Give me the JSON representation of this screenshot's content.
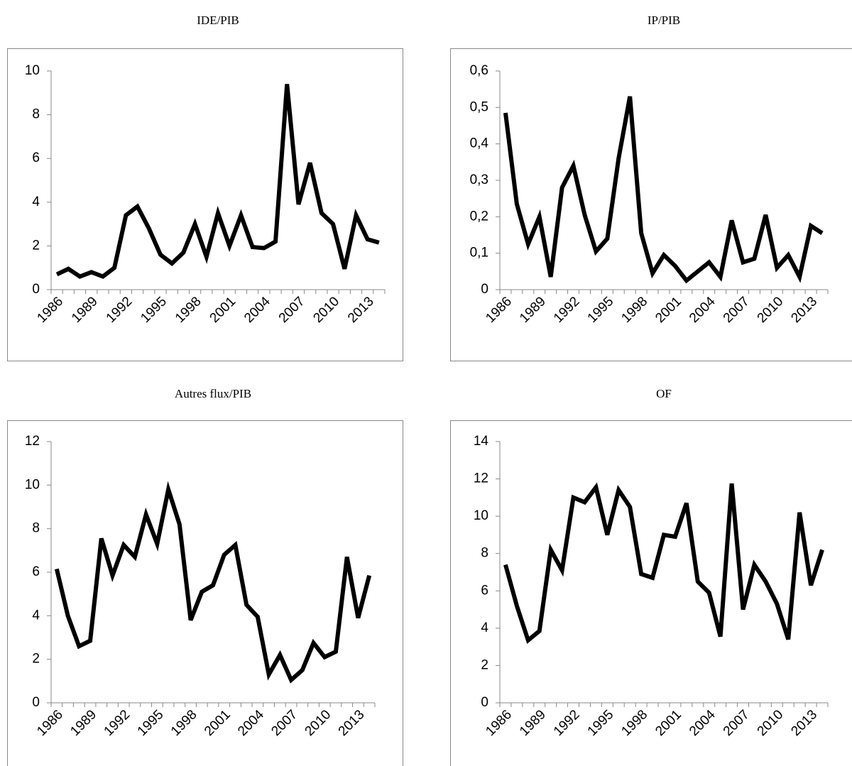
{
  "chart_data": [
    {
      "type": "line",
      "title": "IDE/PIB",
      "categories": [
        "1986",
        null,
        null,
        "1989",
        null,
        null,
        "1992",
        null,
        null,
        "1995",
        null,
        null,
        "1998",
        null,
        null,
        "2001",
        null,
        null,
        "2004",
        null,
        null,
        "2007",
        null,
        null,
        "2010",
        null,
        null,
        "2013",
        null
      ],
      "values": [
        0.7,
        0.95,
        0.6,
        0.8,
        0.6,
        1.0,
        3.4,
        3.8,
        2.8,
        1.6,
        1.2,
        1.7,
        3.0,
        1.5,
        3.5,
        2.0,
        3.4,
        1.95,
        1.9,
        2.2,
        9.4,
        3.9,
        5.8,
        3.5,
        3.0,
        0.95,
        3.4,
        2.3,
        2.15
      ],
      "color": "#000000",
      "ylim": [
        0,
        10
      ],
      "yticks": [
        0,
        2,
        4,
        6,
        8,
        10
      ]
    },
    {
      "type": "line",
      "title": "IP/PIB",
      "categories": [
        "1986",
        null,
        null,
        "1989",
        null,
        null,
        "1992",
        null,
        null,
        "1995",
        null,
        null,
        "1998",
        null,
        null,
        "2001",
        null,
        null,
        "2004",
        null,
        null,
        "2007",
        null,
        null,
        "2010",
        null,
        null,
        "2013",
        null
      ],
      "values": [
        0.485,
        0.235,
        0.125,
        0.2,
        0.035,
        0.28,
        0.34,
        0.205,
        0.105,
        0.14,
        0.36,
        0.53,
        0.155,
        0.045,
        0.095,
        0.065,
        0.025,
        0.05,
        0.075,
        0.035,
        0.19,
        0.075,
        0.085,
        0.205,
        0.06,
        0.095,
        0.035,
        0.175,
        0.155
      ],
      "color": "#000000",
      "ylim": [
        0,
        0.6
      ],
      "yticks": [
        0,
        {
          "value": 0.1,
          "label": "0,1"
        },
        {
          "value": 0.2,
          "label": "0,2"
        },
        {
          "value": 0.3,
          "label": "0,3"
        },
        {
          "value": 0.4,
          "label": "0,4"
        },
        {
          "value": 0.5,
          "label": "0,5"
        },
        {
          "value": 0.6,
          "label": "0,6"
        }
      ]
    },
    {
      "type": "line",
      "title": "Autres flux/PIB",
      "categories": [
        "1986",
        null,
        null,
        "1989",
        null,
        null,
        "1992",
        null,
        null,
        "1995",
        null,
        null,
        "1998",
        null,
        null,
        "2001",
        null,
        null,
        "2004",
        null,
        null,
        "2007",
        null,
        null,
        "2010",
        null,
        null,
        "2013",
        null
      ],
      "values": [
        6.15,
        4.0,
        2.6,
        2.85,
        7.55,
        5.85,
        7.25,
        6.7,
        8.65,
        7.3,
        9.8,
        8.2,
        3.8,
        5.1,
        5.4,
        6.8,
        7.25,
        4.5,
        3.95,
        1.3,
        2.2,
        1.05,
        1.5,
        2.75,
        2.1,
        2.35,
        6.7,
        3.9,
        5.85
      ],
      "color": "#000000",
      "ylim": [
        0,
        12
      ],
      "yticks": [
        0,
        2,
        4,
        6,
        8,
        10,
        12
      ]
    },
    {
      "type": "line",
      "title": "OF",
      "categories": [
        "1986",
        null,
        null,
        "1989",
        null,
        null,
        "1992",
        null,
        null,
        "1995",
        null,
        null,
        "1998",
        null,
        null,
        "2001",
        null,
        null,
        "2004",
        null,
        null,
        "2007",
        null,
        null,
        "2010",
        null,
        null,
        "2013",
        null
      ],
      "values": [
        7.4,
        5.2,
        3.35,
        3.85,
        8.2,
        7.1,
        11.0,
        10.75,
        11.55,
        9.0,
        11.4,
        10.5,
        6.9,
        6.7,
        9.0,
        8.9,
        10.7,
        6.5,
        5.9,
        3.55,
        11.75,
        5.0,
        7.4,
        6.5,
        5.3,
        3.4,
        10.2,
        6.3,
        8.2
      ],
      "color": "#000000",
      "ylim": [
        0,
        14
      ],
      "yticks": [
        0,
        2,
        4,
        6,
        8,
        10,
        12,
        14
      ]
    }
  ]
}
